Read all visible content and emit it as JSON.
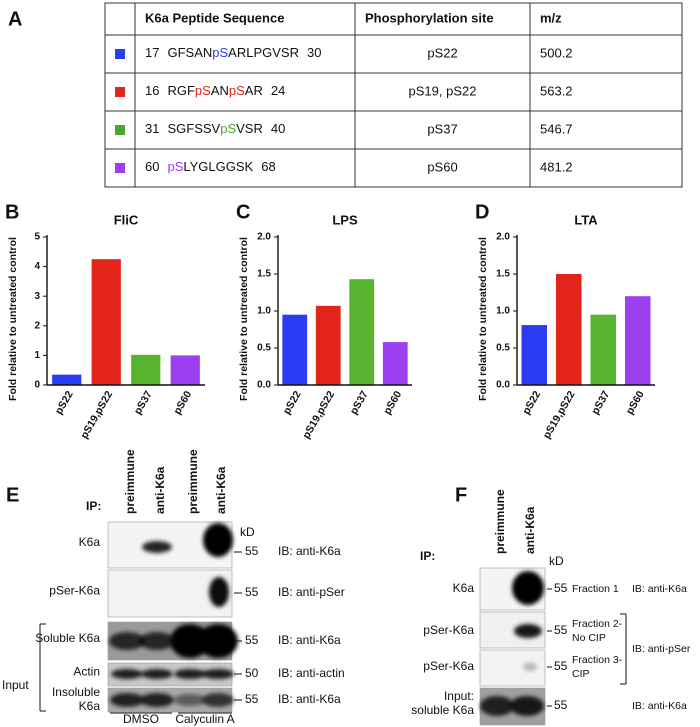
{
  "table": {
    "panel": "A",
    "header": [
      "K6a Peptide Sequence",
      "Phosphorylation site",
      "m/z"
    ],
    "rows": [
      {
        "color": "#2b3df2",
        "start": "17",
        "sequence": [
          {
            "text": "GFSAN"
          },
          {
            "text": "pS",
            "phospho": true
          },
          {
            "text": "ARLPGVSR"
          }
        ],
        "end": "30",
        "site": "pS22",
        "mz": "500.2"
      },
      {
        "color": "#e2241b",
        "start": "16",
        "sequence": [
          {
            "text": "RGF"
          },
          {
            "text": "pS",
            "phospho": true
          },
          {
            "text": "AN"
          },
          {
            "text": "pS",
            "phospho": true
          },
          {
            "text": "AR"
          }
        ],
        "end": "24",
        "site": "pS19, pS22",
        "mz": "563.2"
      },
      {
        "color": "#4aa62e",
        "start": "31",
        "sequence": [
          {
            "text": "SGFSSV"
          },
          {
            "text": "pS",
            "phospho": true
          },
          {
            "text": "VSR"
          }
        ],
        "end": "40",
        "site": "pS37",
        "mz": "546.7"
      },
      {
        "color": "#9b3ff0",
        "start": "60",
        "sequence": [
          {
            "text": "pS",
            "phospho": true
          },
          {
            "text": "LYGLGGSK"
          }
        ],
        "end": "68",
        "site": "pS60",
        "mz": "481.2"
      }
    ]
  },
  "chart_data": [
    {
      "type": "bar",
      "panel": "B",
      "title": "FliC",
      "y_label": "Fold relative to untreated control",
      "categories": [
        "pS22",
        "pS19,pS22",
        "pS37",
        "pS60"
      ],
      "values": [
        0.35,
        4.25,
        1.02,
        1.0
      ],
      "colors": [
        "#2b3df2",
        "#e2241b",
        "#58b42e",
        "#9b3ff0"
      ],
      "ylim": [
        0,
        5
      ],
      "yticks": [
        0,
        1,
        2,
        3,
        4,
        5
      ]
    },
    {
      "type": "bar",
      "panel": "C",
      "title": "LPS",
      "y_label": "Fold relative to untreated control",
      "categories": [
        "pS22",
        "pS19,pS22",
        "pS37",
        "pS60"
      ],
      "values": [
        0.95,
        1.07,
        1.43,
        0.58
      ],
      "colors": [
        "#2b3df2",
        "#e2241b",
        "#58b42e",
        "#9b3ff0"
      ],
      "ylim": [
        0,
        2
      ],
      "yticks": [
        {
          "value": 0,
          "label": "0.0"
        },
        0.5,
        {
          "value": 1,
          "label": "1.0"
        },
        1.5,
        {
          "value": 2,
          "label": "2.0"
        }
      ]
    },
    {
      "type": "bar",
      "panel": "D",
      "title": "LTA",
      "y_label": "Fold relative to untreated control",
      "categories": [
        "pS22",
        "pS19,pS22",
        "pS37",
        "pS60"
      ],
      "values": [
        0.81,
        1.5,
        0.95,
        1.2
      ],
      "colors": [
        "#2b3df2",
        "#e2241b",
        "#58b42e",
        "#9b3ff0"
      ],
      "ylim": [
        0,
        2
      ],
      "yticks": [
        {
          "value": 0,
          "label": "0.0"
        },
        0.5,
        {
          "value": 1,
          "label": "1.0"
        },
        1.5,
        {
          "value": 2,
          "label": "2.0"
        }
      ]
    }
  ],
  "blot_e": {
    "panel": "E",
    "ip_label": "IP:",
    "lanes": [
      "preimmune",
      "anti-K6a",
      "preimmune",
      "anti-K6a"
    ],
    "kd_label": "kD",
    "rows": [
      {
        "label": [
          "K6a"
        ],
        "marker": "55",
        "ib": "IB: anti-K6a"
      },
      {
        "label": [
          "pSer-K6a"
        ],
        "marker": "55",
        "ib": "IB: anti-pSer"
      },
      {
        "label": [
          "Soluble K6a"
        ],
        "marker": "55",
        "ib": "IB: anti-K6a"
      },
      {
        "label": [
          "Actin"
        ],
        "marker": "50",
        "ib": "IB: anti-actin"
      },
      {
        "label": [
          "Insoluble",
          "K6a"
        ],
        "marker": "55",
        "ib": "IB: anti-K6a"
      }
    ],
    "input_label": "Input",
    "treatments": [
      "DMSO",
      "Calyculin A"
    ]
  },
  "blot_f": {
    "panel": "F",
    "ip_label": "IP:",
    "lanes": [
      "preimmune",
      "anti-K6a"
    ],
    "kd_label": "kD",
    "rows": [
      {
        "label": [
          "K6a"
        ],
        "marker": "55",
        "fraction": [
          "Fraction 1"
        ],
        "ib": "IB: anti-K6a"
      },
      {
        "label": [
          "pSer-K6a"
        ],
        "marker": "55",
        "fraction": [
          "Fraction 2-",
          "No CIP"
        ]
      },
      {
        "label": [
          "pSer-K6a"
        ],
        "marker": "55",
        "fraction": [
          "Fraction 3-",
          "CIP"
        ]
      },
      {
        "label": [
          "Input:",
          "soluble K6a"
        ],
        "marker": "55",
        "ib": "IB: anti-K6a"
      }
    ],
    "bracket_ib": "IB: anti-pSer"
  }
}
